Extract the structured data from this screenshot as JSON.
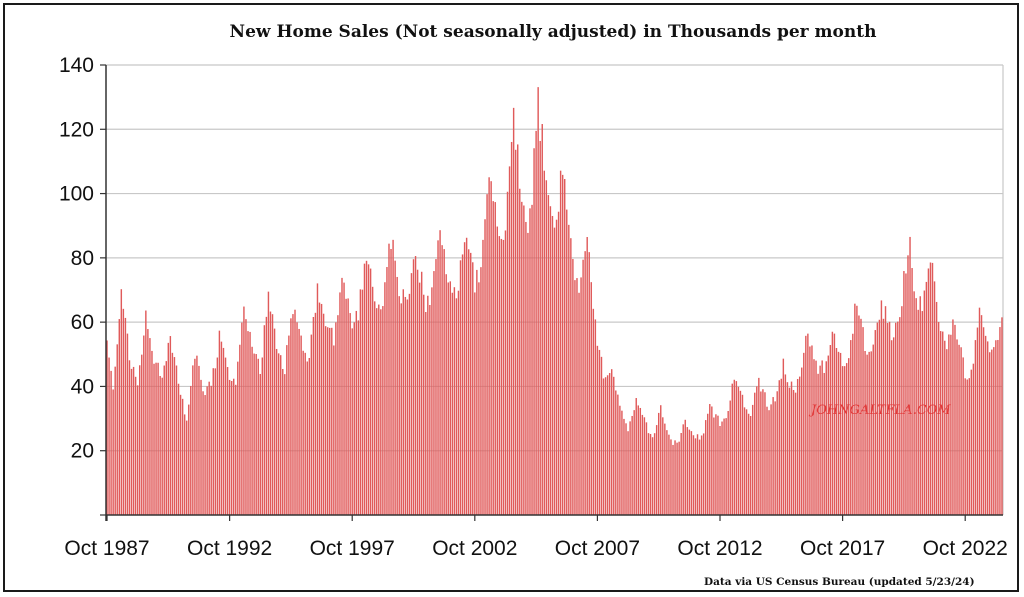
{
  "chart_data": {
    "type": "bar",
    "title": "New Home Sales (Not seasonally adjusted) in Thousands per month",
    "xlabel": "",
    "ylabel": "",
    "ylim": [
      0,
      140
    ],
    "yticks": [
      20,
      40,
      60,
      80,
      100,
      120,
      140
    ],
    "xticks": [
      "Oct 1987",
      "Oct 1992",
      "Oct 1997",
      "Oct 2002",
      "Oct 2007",
      "Oct 2012",
      "Oct 2017",
      "Oct 2022"
    ],
    "x_start": "1987-10",
    "x_end": "2024-04",
    "grid": true,
    "bar_color": "#e05a5a",
    "anchors": [
      [
        "1987-10",
        52
      ],
      [
        "1988-01",
        40
      ],
      [
        "1988-05",
        68
      ],
      [
        "1988-10",
        45
      ],
      [
        "1989-01",
        42
      ],
      [
        "1989-05",
        62
      ],
      [
        "1989-10",
        46
      ],
      [
        "1990-01",
        44
      ],
      [
        "1990-05",
        55
      ],
      [
        "1990-10",
        38
      ],
      [
        "1991-01",
        30
      ],
      [
        "1991-05",
        50
      ],
      [
        "1991-10",
        38
      ],
      [
        "1992-01",
        41
      ],
      [
        "1992-05",
        55
      ],
      [
        "1992-10",
        44
      ],
      [
        "1993-01",
        42
      ],
      [
        "1993-05",
        64
      ],
      [
        "1993-10",
        52
      ],
      [
        "1994-01",
        44
      ],
      [
        "1994-05",
        70
      ],
      [
        "1994-10",
        50
      ],
      [
        "1995-01",
        46
      ],
      [
        "1995-05",
        64
      ],
      [
        "1995-10",
        52
      ],
      [
        "1996-01",
        48
      ],
      [
        "1996-05",
        70
      ],
      [
        "1996-10",
        58
      ],
      [
        "1997-01",
        55
      ],
      [
        "1997-05",
        72
      ],
      [
        "1997-10",
        60
      ],
      [
        "1998-01",
        62
      ],
      [
        "1998-05",
        82
      ],
      [
        "1998-10",
        66
      ],
      [
        "1999-01",
        64
      ],
      [
        "1999-05",
        86
      ],
      [
        "1999-10",
        68
      ],
      [
        "2000-01",
        66
      ],
      [
        "2000-05",
        82
      ],
      [
        "2000-10",
        66
      ],
      [
        "2001-01",
        68
      ],
      [
        "2001-05",
        90
      ],
      [
        "2001-10",
        70
      ],
      [
        "2002-01",
        68
      ],
      [
        "2002-05",
        88
      ],
      [
        "2002-10",
        72
      ],
      [
        "2003-01",
        74
      ],
      [
        "2003-05",
        106
      ],
      [
        "2003-10",
        84
      ],
      [
        "2004-01",
        88
      ],
      [
        "2004-05",
        122
      ],
      [
        "2004-10",
        92
      ],
      [
        "2005-01",
        92
      ],
      [
        "2005-05",
        127
      ],
      [
        "2005-10",
        100
      ],
      [
        "2006-01",
        88
      ],
      [
        "2006-05",
        108
      ],
      [
        "2006-10",
        80
      ],
      [
        "2007-01",
        70
      ],
      [
        "2007-05",
        84
      ],
      [
        "2007-10",
        55
      ],
      [
        "2008-01",
        44
      ],
      [
        "2008-05",
        46
      ],
      [
        "2008-10",
        32
      ],
      [
        "2009-01",
        26
      ],
      [
        "2009-05",
        36
      ],
      [
        "2009-10",
        28
      ],
      [
        "2010-01",
        24
      ],
      [
        "2010-05",
        34
      ],
      [
        "2010-10",
        23
      ],
      [
        "2011-01",
        22
      ],
      [
        "2011-05",
        29
      ],
      [
        "2011-10",
        24
      ],
      [
        "2012-01",
        24
      ],
      [
        "2012-05",
        33
      ],
      [
        "2012-10",
        29
      ],
      [
        "2013-01",
        31
      ],
      [
        "2013-05",
        43
      ],
      [
        "2013-10",
        34
      ],
      [
        "2014-01",
        32
      ],
      [
        "2014-05",
        41
      ],
      [
        "2014-10",
        34
      ],
      [
        "2015-01",
        36
      ],
      [
        "2015-05",
        47
      ],
      [
        "2015-10",
        38
      ],
      [
        "2016-01",
        42
      ],
      [
        "2016-05",
        57
      ],
      [
        "2016-10",
        46
      ],
      [
        "2017-01",
        46
      ],
      [
        "2017-05",
        58
      ],
      [
        "2017-10",
        48
      ],
      [
        "2018-01",
        48
      ],
      [
        "2018-05",
        68
      ],
      [
        "2018-10",
        50
      ],
      [
        "2019-01",
        52
      ],
      [
        "2019-05",
        66
      ],
      [
        "2019-10",
        56
      ],
      [
        "2020-01",
        60
      ],
      [
        "2020-07",
        85
      ],
      [
        "2020-10",
        66
      ],
      [
        "2021-01",
        66
      ],
      [
        "2021-05",
        80
      ],
      [
        "2021-10",
        56
      ],
      [
        "2022-01",
        52
      ],
      [
        "2022-05",
        60
      ],
      [
        "2022-10",
        44
      ],
      [
        "2023-01",
        44
      ],
      [
        "2023-05",
        66
      ],
      [
        "2023-10",
        50
      ],
      [
        "2024-01",
        52
      ],
      [
        "2024-04",
        64
      ]
    ]
  },
  "watermark": "JOHNGALTFLA.COM",
  "source_note": "Data via US Census Bureau (updated 5/23/24)"
}
